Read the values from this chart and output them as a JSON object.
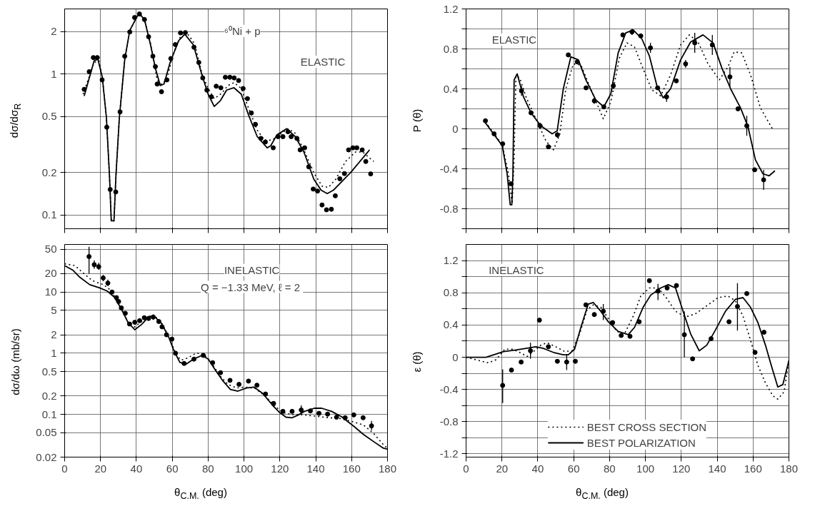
{
  "chart_data": [
    {
      "type": "line",
      "ylabel": "dσ/dσ$_{R}$",
      "annotations": [
        "⁶⁰Ni + p",
        "ELASTIC"
      ],
      "log": "y",
      "xlim": [
        0,
        180
      ],
      "xticks": [
        0,
        20,
        40,
        60,
        80,
        100,
        120,
        140,
        160,
        180
      ],
      "ylim": [
        0.08,
        2.9
      ],
      "yticks": [
        0.1,
        0.2,
        0.5,
        1,
        2
      ],
      "grid": true,
      "tick_labels": "y",
      "series": [
        {
          "type": "scatter",
          "color": "#000000",
          "marker": "circle",
          "x": [
            10.9,
            13.7,
            16.0,
            18.2,
            20.9,
            23.5,
            25.4,
            28.5,
            30.9,
            33.5,
            36.3,
            39.0,
            41.7,
            44.5,
            46.8,
            49.2,
            50.6,
            51.6,
            54.0,
            57.0,
            59.2,
            61.7,
            64.6,
            67.3,
            72.1,
            74.8,
            77.0,
            79.3,
            81.8,
            84.5,
            87.1,
            89.6,
            92.1,
            94.5,
            97.0,
            99.5,
            101.9,
            104.1,
            106.4,
            109.4,
            111.9,
            116.3,
            119.0,
            121.7,
            124.5,
            126.3,
            129.5,
            131.3,
            133.8,
            136.1,
            138.6,
            141.0,
            143.5,
            146.0,
            148.7,
            150.9,
            153.4,
            156.0,
            158.3,
            160.7,
            162.9,
            165.9,
            167.9,
            170.6
          ],
          "values": [
            0.78,
            1.04,
            1.31,
            1.31,
            0.91,
            0.42,
            0.152,
            0.146,
            0.54,
            1.34,
            1.99,
            2.52,
            2.67,
            2.44,
            1.84,
            1.34,
            1.13,
            0.85,
            0.75,
            0.91,
            1.29,
            1.62,
            1.96,
            1.97,
            1.55,
            1.21,
            0.94,
            0.77,
            0.69,
            0.82,
            0.8,
            0.95,
            0.95,
            0.94,
            0.9,
            0.79,
            0.67,
            0.53,
            0.44,
            0.35,
            0.33,
            0.3,
            0.36,
            0.36,
            0.39,
            0.36,
            0.35,
            0.29,
            0.3,
            0.22,
            0.153,
            0.148,
            0.118,
            0.109,
            0.11,
            0.137,
            0.181,
            0.197,
            0.29,
            0.3,
            0.3,
            0.29,
            0.24,
            0.196
          ]
        },
        {
          "color": "#000000",
          "line_style": "dotted",
          "x": [
            10.3,
            16.4,
            19.2,
            21,
            23.3,
            25,
            26,
            27.5,
            28.6,
            30.5,
            33.5,
            36.3,
            41.4,
            44.5,
            47.9,
            51.6,
            53.7,
            56.8,
            60.9,
            65.0,
            67.7,
            72.5,
            76.6,
            80.0,
            83.4,
            87.5,
            91.0,
            94.4,
            98.5,
            102.6,
            107.4,
            111.5,
            115.6,
            119.7,
            124.5,
            128.6,
            133.4,
            138.9,
            143.6,
            147.1,
            151.2,
            156.6,
            162.1,
            166.2,
            172.3
          ],
          "values": [
            0.72,
            1.21,
            1.24,
            0.95,
            0.49,
            0.19,
            0.091,
            0.091,
            0.19,
            0.49,
            1.27,
            2.04,
            2.71,
            2.44,
            1.65,
            0.91,
            0.85,
            0.91,
            1.44,
            1.9,
            2.0,
            1.64,
            1.0,
            0.79,
            0.67,
            0.73,
            0.83,
            0.87,
            0.79,
            0.57,
            0.4,
            0.34,
            0.34,
            0.37,
            0.41,
            0.38,
            0.29,
            0.2,
            0.16,
            0.157,
            0.18,
            0.24,
            0.28,
            0.28,
            0.24
          ]
        },
        {
          "color": "#000000",
          "line_style": "solid",
          "x": [
            10.9,
            16.4,
            18.5,
            21,
            23.3,
            25,
            26,
            27.5,
            28.6,
            30.5,
            33.5,
            36.3,
            41.4,
            44.5,
            47.9,
            50.6,
            53.3,
            55.4,
            58.8,
            63.6,
            67.0,
            71.8,
            76.6,
            80.0,
            83.4,
            86.9,
            90.3,
            94.4,
            98.5,
            102.6,
            107.4,
            112.9,
            114.9,
            118.3,
            123.8,
            128.6,
            133.4,
            138.9,
            143.0,
            146.4,
            149.8,
            159.4,
            170.0
          ],
          "values": [
            0.7,
            1.24,
            1.28,
            0.95,
            0.49,
            0.19,
            0.091,
            0.091,
            0.19,
            0.49,
            1.27,
            2.04,
            2.71,
            2.44,
            1.61,
            1.1,
            0.83,
            0.85,
            1.21,
            1.73,
            1.92,
            1.61,
            0.98,
            0.72,
            0.59,
            0.65,
            0.77,
            0.8,
            0.72,
            0.51,
            0.36,
            0.3,
            0.31,
            0.37,
            0.41,
            0.36,
            0.28,
            0.18,
            0.15,
            0.142,
            0.15,
            0.2,
            0.29
          ]
        }
      ]
    },
    {
      "type": "line",
      "ylabel": "P (θ)",
      "annotations": [
        "ELASTIC"
      ],
      "xlim": [
        0,
        180
      ],
      "xticks": [
        0,
        20,
        40,
        60,
        80,
        100,
        120,
        140,
        160,
        180
      ],
      "ylim": [
        -1.0,
        1.2
      ],
      "yticks": [
        {
          "value": -1.0,
          "label": null
        },
        -0.8,
        {
          "value": -0.6,
          "label": null
        },
        -0.4,
        {
          "value": -0.2,
          "label": null
        },
        0,
        {
          "value": 0.2,
          "label": null
        },
        0.4,
        {
          "value": 0.6,
          "label": null
        },
        0.8,
        {
          "value": 1.0,
          "label": null
        },
        1.2
      ],
      "grid": true,
      "tick_labels": "y",
      "series": [
        {
          "type": "scatter",
          "color": "#000000",
          "marker": "circle",
          "x": [
            10.8,
            15.6,
            20.4,
            25.0,
            30.9,
            36.2,
            41.3,
            45.9,
            50.9,
            57.0,
            62.0,
            66.9,
            71.5,
            76.8,
            82.1,
            87.4,
            92.5,
            97.4,
            102.8,
            106.8,
            111.8,
            117.2,
            122.4,
            127.5,
            137.3,
            147.1,
            151.6,
            156.5,
            160.9,
            165.9
          ],
          "values": [
            0.08,
            -0.05,
            -0.15,
            -0.55,
            0.38,
            0.16,
            0.03,
            -0.18,
            -0.06,
            0.74,
            0.67,
            0.41,
            0.28,
            0.22,
            0.43,
            0.94,
            0.97,
            0.93,
            0.81,
            0.41,
            0.32,
            0.48,
            0.65,
            0.86,
            0.84,
            0.52,
            0.2,
            0.03,
            -0.41,
            -0.51
          ],
          "errors": [
            0.02,
            null,
            null,
            null,
            0.05,
            null,
            0.03,
            null,
            0.03,
            null,
            0.02,
            null,
            0.03,
            null,
            0.03,
            null,
            0.03,
            null,
            0.05,
            null,
            0.05,
            null,
            0.04,
            0.1,
            0.1,
            0.1,
            null,
            0.1,
            null,
            0.1
          ]
        },
        {
          "color": "#000000",
          "line_style": "dotted",
          "x": [
            10.8,
            20.2,
            23.6,
            25.7,
            26.7,
            27.8,
            29.9,
            33.4,
            38.9,
            44.5,
            48.7,
            52.2,
            55.6,
            59.8,
            64.0,
            69.5,
            76.5,
            80.7,
            85.5,
            89.7,
            93.9,
            98.7,
            103.6,
            108.5,
            114.0,
            119.6,
            124.5,
            129.3,
            134.9,
            141.2,
            146.0,
            149.5,
            153.7,
            158.6,
            164.1,
            171.1
          ],
          "values": [
            0.07,
            -0.16,
            -0.45,
            -0.75,
            -0.34,
            0.53,
            0.51,
            0.32,
            0.1,
            -0.12,
            -0.21,
            -0.06,
            0.4,
            0.65,
            0.64,
            0.4,
            0.1,
            0.27,
            0.71,
            0.86,
            0.82,
            0.6,
            0.39,
            0.33,
            0.54,
            0.84,
            0.94,
            0.87,
            0.65,
            0.49,
            0.62,
            0.77,
            0.76,
            0.54,
            0.21,
            -0.01
          ]
        },
        {
          "color": "#000000",
          "line_style": "solid",
          "x": [
            10.8,
            20.2,
            22.9,
            24.6,
            25.5,
            26.1,
            26.8,
            28.5,
            32.0,
            36.2,
            41.7,
            48.0,
            50.8,
            54.2,
            58.4,
            62.6,
            66.8,
            72.3,
            76.8,
            80.7,
            84.8,
            89.0,
            93.2,
            98.0,
            102.2,
            106.4,
            109.9,
            114.0,
            119.6,
            125.2,
            132.1,
            137.7,
            142.6,
            147.5,
            153.0,
            157.2,
            161.3,
            165.5,
            169.0,
            172.2
          ],
          "values": [
            0.06,
            -0.17,
            -0.45,
            -0.76,
            -0.76,
            -0.47,
            0.49,
            0.55,
            0.32,
            0.16,
            0.03,
            -0.05,
            -0.02,
            0.4,
            0.72,
            0.69,
            0.49,
            0.29,
            0.22,
            0.35,
            0.76,
            0.96,
            0.99,
            0.9,
            0.73,
            0.43,
            0.31,
            0.4,
            0.69,
            0.87,
            0.94,
            0.86,
            0.61,
            0.4,
            0.21,
            0.02,
            -0.31,
            -0.45,
            -0.47,
            -0.42
          ]
        }
      ]
    },
    {
      "type": "line",
      "xlabel": "θ$_{C.M.}$ (deg)",
      "ylabel": "dσ/dω (mb/sr)",
      "annotations": [
        "INELASTIC",
        "Q = −1.33 MeV,  ℓ = 2"
      ],
      "log": "y",
      "xlim": [
        0,
        180
      ],
      "xticks": [
        0,
        20,
        40,
        60,
        80,
        100,
        120,
        140,
        160,
        180
      ],
      "ylim": [
        0.02,
        60
      ],
      "yticks": [
        0.02,
        0.05,
        0.1,
        0.2,
        0.5,
        1,
        2,
        5,
        10,
        20,
        50
      ],
      "grid": true,
      "series": [
        {
          "type": "scatter",
          "color": "#000000",
          "marker": "circle",
          "x": [
            13.6,
            16.5,
            19.0,
            21.5,
            24.1,
            26.4,
            28.9,
            30.1,
            31.6,
            33.8,
            36.2,
            39.1,
            41.8,
            44.4,
            46.8,
            49.4,
            52.5,
            54.3,
            56.8,
            59.8,
            61.8,
            66.6,
            72.1,
            77.3,
            82.5,
            86.9,
            92.2,
            97.2,
            102.5,
            107.2,
            112.0,
            116.5,
            121.7,
            126.8,
            131.9,
            137.0,
            141.8,
            146.6,
            151.6,
            156.4,
            161.2,
            166.4,
            171.1
          ],
          "values": [
            38,
            28,
            26,
            17,
            14,
            10,
            8.1,
            7.0,
            5.5,
            4.5,
            3.0,
            3.2,
            3.4,
            3.8,
            3.7,
            3.9,
            3.3,
            2.7,
            2.0,
            1.7,
            1.0,
            0.68,
            0.8,
            0.92,
            0.7,
            0.48,
            0.36,
            0.31,
            0.35,
            0.3,
            0.215,
            0.151,
            0.112,
            0.112,
            0.118,
            0.114,
            0.104,
            0.101,
            0.09,
            0.088,
            0.098,
            0.088,
            0.065
          ],
          "errors": [
            [
              20,
              55
            ],
            [
              24,
              33
            ],
            [
              23,
              30
            ],
            [
              15,
              19
            ],
            [
              12.5,
              16
            ],
            null,
            null,
            null,
            null,
            null,
            null,
            null,
            null,
            null,
            null,
            [
              3.5,
              4.3
            ],
            null,
            null,
            null,
            null,
            null,
            null,
            null,
            null,
            null,
            null,
            null,
            null,
            null,
            null,
            null,
            null,
            null,
            null,
            [
              0.1,
              0.14
            ],
            null,
            null,
            null,
            null,
            null,
            null,
            null,
            [
              0.055,
              0.078
            ]
          ]
        },
        {
          "color": "#000000",
          "line_style": "dotted",
          "x": [
            0,
            5.8,
            9.9,
            15.4,
            20.9,
            24.3,
            27.8,
            31.9,
            36.0,
            39.1,
            42.9,
            47.0,
            50.5,
            54.6,
            58.7,
            62.2,
            64.9,
            68.4,
            73.2,
            77.3,
            81.4,
            86.2,
            91.0,
            95.9,
            100.7,
            106.2,
            111.7,
            117.2,
            122.0,
            126.8,
            133.7,
            140.6,
            147.5,
            154.3,
            161.2,
            166.6,
            172.2,
            177.7,
            180
          ],
          "values": [
            29,
            27,
            21,
            15.4,
            13.4,
            11.7,
            8.5,
            5.1,
            2.95,
            2.68,
            3.3,
            4.0,
            4.0,
            2.95,
            1.7,
            0.94,
            0.77,
            0.83,
            1.0,
            0.98,
            0.74,
            0.44,
            0.31,
            0.27,
            0.28,
            0.265,
            0.2,
            0.136,
            0.107,
            0.099,
            0.098,
            0.093,
            0.088,
            0.085,
            0.075,
            0.067,
            0.049,
            0.032,
            0.028
          ]
        },
        {
          "color": "#000000",
          "line_style": "solid",
          "x": [
            0,
            4.4,
            8.5,
            14.0,
            19.5,
            23.7,
            27.8,
            31.9,
            35.3,
            39.1,
            42.9,
            47.0,
            49.8,
            53.9,
            58.0,
            60.7,
            64.2,
            67.7,
            71.8,
            76.6,
            80.1,
            84.2,
            88.3,
            92.4,
            96.6,
            101.4,
            105.5,
            110.3,
            115.8,
            119.9,
            123.4,
            126.8,
            130.3,
            133.7,
            139.2,
            143.3,
            148.8,
            154.3,
            161.2,
            166.6,
            172.2,
            177.7,
            180
          ],
          "values": [
            27,
            23,
            17.4,
            13.2,
            11.7,
            10.4,
            8.2,
            5.1,
            3.2,
            2.42,
            2.95,
            4.0,
            4.05,
            3.1,
            1.84,
            1.14,
            0.71,
            0.66,
            0.8,
            0.92,
            0.8,
            0.52,
            0.35,
            0.256,
            0.24,
            0.27,
            0.28,
            0.222,
            0.142,
            0.107,
            0.09,
            0.088,
            0.098,
            0.112,
            0.126,
            0.126,
            0.112,
            0.092,
            0.064,
            0.047,
            0.036,
            0.028,
            0.027
          ]
        }
      ]
    },
    {
      "type": "line",
      "xlabel": "θ$_{C.M.}$ (deg)",
      "ylabel": "ε (θ)",
      "annotations": [
        "INELASTIC"
      ],
      "legend": "bottom",
      "xlim": [
        0,
        180
      ],
      "xticks": [
        0,
        20,
        40,
        60,
        80,
        100,
        120,
        140,
        160,
        180
      ],
      "ylim": [
        -1.24,
        1.4
      ],
      "yticks": [
        -1.2,
        {
          "value": -1.0,
          "label": null
        },
        -0.8,
        {
          "value": -0.6,
          "label": null
        },
        -0.4,
        {
          "value": -0.2,
          "label": null
        },
        0,
        {
          "value": 0.2,
          "label": null
        },
        0.4,
        {
          "value": 0.6,
          "label": null
        },
        0.8,
        {
          "value": 1.0,
          "label": null
        },
        1.2
      ],
      "grid": true,
      "series": [
        {
          "type": "scatter",
          "color": "#000000",
          "marker": "circle",
          "x": [
            20.4,
            25.3,
            30.7,
            35.9,
            40.9,
            45.9,
            50.9,
            56.1,
            60.9,
            66.8,
            71.5,
            76.5,
            81.7,
            86.5,
            91.4,
            96.5,
            102.2,
            107.0,
            112.1,
            117.3,
            121.7,
            126.3,
            136.6,
            146.6,
            151.3,
            156.5,
            161.1,
            166.1
          ],
          "values": [
            -0.35,
            -0.16,
            -0.06,
            0.08,
            0.46,
            0.13,
            -0.05,
            -0.06,
            -0.05,
            0.65,
            0.53,
            0.57,
            0.43,
            0.27,
            0.26,
            0.44,
            0.95,
            0.82,
            0.86,
            0.89,
            0.28,
            -0.02,
            0.23,
            0.44,
            0.63,
            0.79,
            0.06,
            0.31
          ],
          "errors": [
            [
              -0.57,
              -0.15
            ],
            null,
            null,
            [
              -0.02,
              0.18
            ],
            null,
            null,
            null,
            [
              -0.16,
              0.04
            ],
            null,
            null,
            null,
            [
              0.46,
              0.66
            ],
            null,
            null,
            null,
            null,
            null,
            [
              0.71,
              0.91
            ],
            null,
            null,
            [
              0,
              0.57
            ],
            null,
            null,
            null,
            [
              0.33,
              0.92
            ],
            null,
            null,
            null
          ]
        },
        {
          "name": "BEST CROSS SECTION",
          "color": "#000000",
          "line_style": "dotted",
          "x": [
            0,
            7.0,
            12.5,
            16.7,
            21.6,
            25.7,
            29.9,
            34.1,
            37.6,
            41.7,
            45.2,
            50.1,
            55.0,
            59.1,
            63.3,
            67.5,
            70.9,
            75.1,
            79.3,
            84.1,
            88.3,
            93.2,
            97.4,
            102.2,
            107.1,
            111.9,
            116.8,
            122.4,
            127.9,
            134.9,
            140.5,
            146.0,
            150.2,
            154.4,
            158.6,
            162.7,
            166.9,
            171.1,
            173.8,
            177.3,
            180
          ],
          "values": [
            0,
            -0.04,
            -0.07,
            -0.03,
            0.1,
            0.1,
            0.06,
            0.01,
            0.07,
            0.15,
            0.18,
            0.13,
            0.07,
            0.08,
            0.29,
            0.59,
            0.65,
            0.62,
            0.48,
            0.32,
            0.29,
            0.51,
            0.76,
            0.86,
            0.86,
            0.73,
            0.57,
            0.5,
            0.54,
            0.65,
            0.74,
            0.76,
            0.7,
            0.51,
            0.21,
            -0.1,
            -0.32,
            -0.48,
            -0.52,
            -0.43,
            -0.04
          ]
        },
        {
          "name": "BEST POLARIZATION",
          "color": "#000000",
          "line_style": "solid",
          "x": [
            0,
            11.1,
            20.9,
            27.8,
            33.4,
            38.9,
            43.1,
            48.7,
            54.2,
            57.0,
            60.5,
            64.0,
            68.1,
            70.9,
            75.1,
            79.3,
            84.8,
            90.4,
            93.9,
            98.7,
            102.9,
            108.5,
            112.7,
            116.8,
            121.0,
            125.2,
            130.0,
            134.2,
            139.1,
            144.6,
            150.2,
            154.4,
            158.6,
            162.7,
            166.9,
            170.4,
            173.8,
            176.6,
            180
          ],
          "values": [
            0,
            0,
            0.07,
            0.09,
            0.11,
            0.13,
            0.11,
            0.06,
            0.03,
            0.03,
            0.1,
            0.37,
            0.66,
            0.68,
            0.57,
            0.44,
            0.32,
            0.28,
            0.37,
            0.62,
            0.77,
            0.86,
            0.9,
            0.86,
            0.57,
            0.29,
            0.08,
            0.15,
            0.34,
            0.57,
            0.72,
            0.74,
            0.62,
            0.43,
            0.15,
            -0.12,
            -0.37,
            -0.34,
            -0.04
          ]
        }
      ]
    }
  ]
}
